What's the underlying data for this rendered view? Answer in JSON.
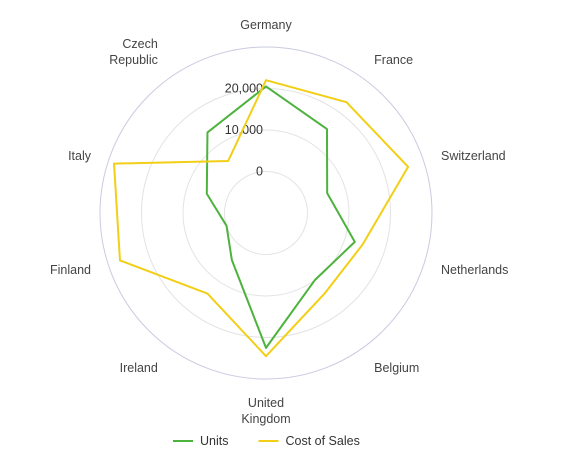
{
  "chart_data": {
    "type": "radar",
    "title": "",
    "categories": [
      "Germany",
      "France",
      "Switzerland",
      "Netherlands",
      "Belgium",
      "United Kingdom",
      "Ireland",
      "Finland",
      "Italy",
      "Czech Republic"
    ],
    "category_lines": [
      [
        "Germany"
      ],
      [
        "France"
      ],
      [
        "Switzerland"
      ],
      [
        "Netherlands"
      ],
      [
        "Belgium"
      ],
      [
        "United",
        "Kingdom"
      ],
      [
        "Ireland"
      ],
      [
        "Finland"
      ],
      [
        "Italy"
      ],
      [
        "Czech",
        "Republic"
      ]
    ],
    "radial_ticks": [
      "0",
      "10,000",
      "20,000"
    ],
    "tick_values": [
      0,
      10000,
      20000
    ],
    "rlim": [
      -10000,
      30000
    ],
    "grid": true,
    "legend_position": "bottom",
    "series": [
      {
        "name": "Units",
        "color": "#4db33d",
        "values": [
          20500,
          15000,
          5500,
          12500,
          10000,
          22500,
          4000,
          0,
          5000,
          14000
        ]
      },
      {
        "name": "Cost of Sales",
        "color": "#f2cf16",
        "values": [
          22000,
          23000,
          26000,
          14500,
          14000,
          24500,
          14000,
          27000,
          28500,
          5500
        ]
      }
    ]
  }
}
